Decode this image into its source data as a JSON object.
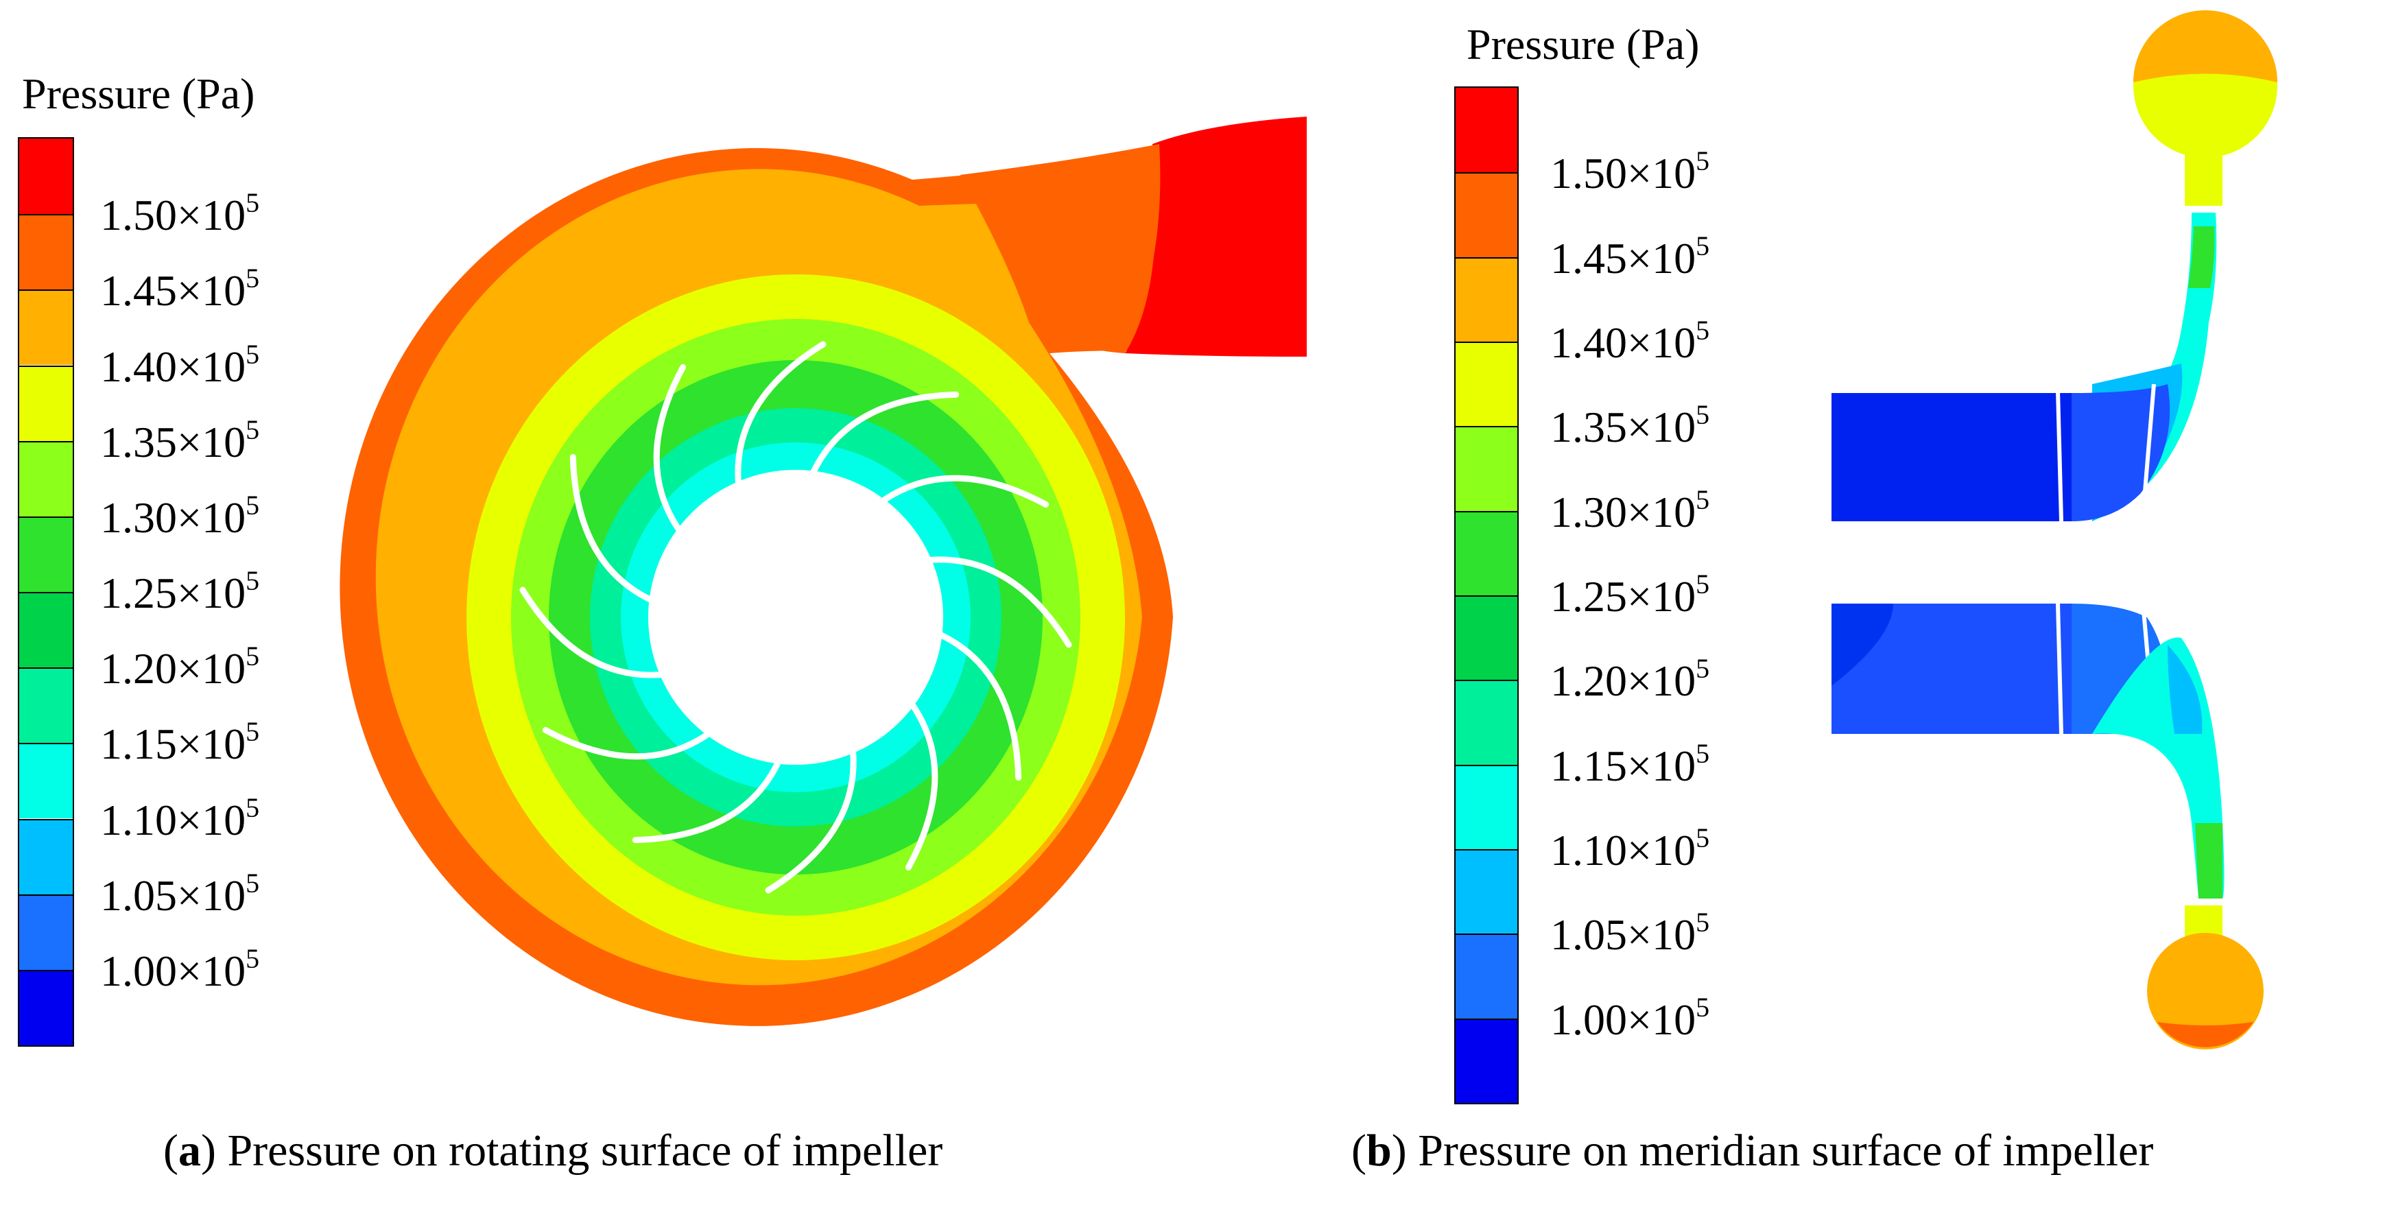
{
  "panel_a": {
    "legend": {
      "title": "Pressure (Pa)",
      "labels": [
        "1.50",
        "1.45",
        "1.40",
        "1.35",
        "1.30",
        "1.25",
        "1.20",
        "1.15",
        "1.10",
        "1.05",
        "1.00"
      ],
      "times_sign": "×10",
      "exponent": "5",
      "colors": [
        "#ff0000",
        "#ff6200",
        "#ffb000",
        "#e8ff00",
        "#8cff1a",
        "#2ee22e",
        "#00d24a",
        "#00ef9a",
        "#00ffe6",
        "#00bfff",
        "#1a70ff",
        "#0000f0"
      ]
    },
    "caption": {
      "letter": "a",
      "text": "Pressure on rotating surface of impeller"
    }
  },
  "panel_b": {
    "legend": {
      "title": "Pressure (Pa)",
      "labels": [
        "1.50",
        "1.45",
        "1.40",
        "1.35",
        "1.30",
        "1.25",
        "1.20",
        "1.15",
        "1.10",
        "1.05",
        "1.00"
      ],
      "times_sign": "×10",
      "exponent": "5",
      "colors": [
        "#ff0000",
        "#ff6200",
        "#ffb000",
        "#e8ff00",
        "#8cff1a",
        "#2ee22e",
        "#00d24a",
        "#00ef9a",
        "#00ffe6",
        "#00bfff",
        "#1a70ff",
        "#0000f0"
      ]
    },
    "caption": {
      "letter": "b",
      "text": "Pressure on meridian surface of impeller"
    }
  }
}
